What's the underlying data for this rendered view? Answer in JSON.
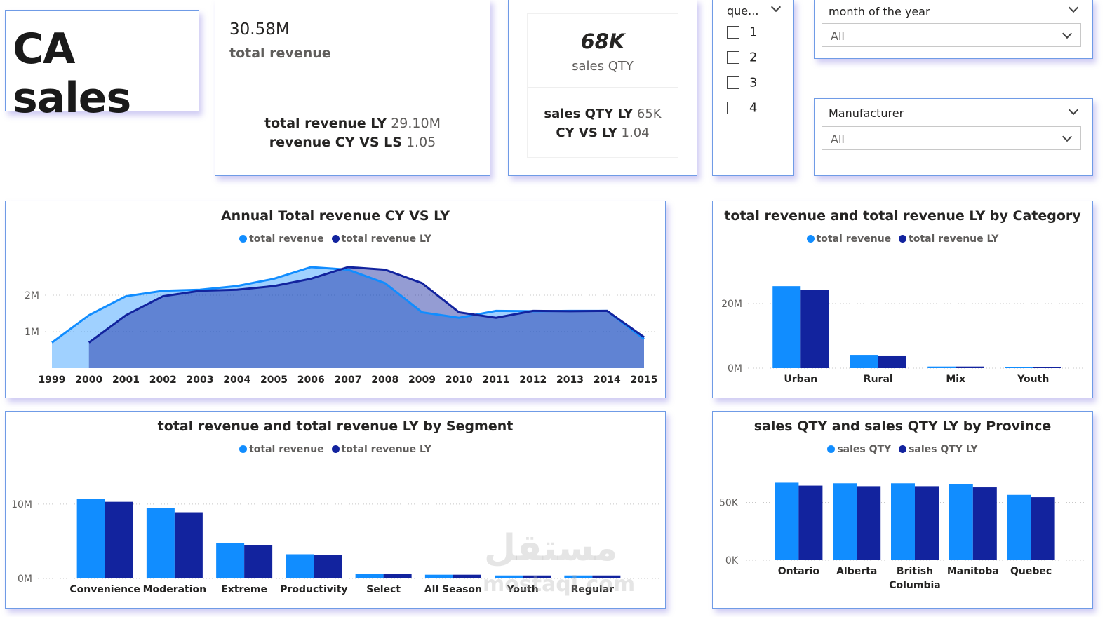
{
  "title": "CA sales",
  "kpi_revenue": {
    "value": "30.58M",
    "label": "total revenue",
    "ly_label": "total revenue LY",
    "ly_value": "29.10M",
    "cmp_label": "revenue CY VS LS",
    "cmp_value": "1.05"
  },
  "kpi_qty": {
    "value": "68K",
    "label": "sales QTY",
    "ly_label": "sales QTY LY",
    "ly_value": "65K",
    "cmp_label": "CY VS LY",
    "cmp_value": "1.04"
  },
  "quarter_slicer": {
    "title": "que...",
    "options": [
      "1",
      "2",
      "3",
      "4"
    ]
  },
  "month_slicer": {
    "title": "month of the year",
    "value": "All"
  },
  "manufacturer_slicer": {
    "title": "Manufacturer",
    "value": "All"
  },
  "colors": {
    "cy": "#118dff",
    "ly": "#12239e",
    "card_border": "#6f9be6"
  },
  "watermark": {
    "text_ar": "مستقل",
    "text_en": "mostaql.com"
  },
  "chart_data": [
    {
      "id": "annual",
      "type": "area",
      "title": "Annual Total revenue CY VS LY",
      "x": [
        "1999",
        "2000",
        "2001",
        "2002",
        "2003",
        "2004",
        "2005",
        "2006",
        "2007",
        "2008",
        "2009",
        "2010",
        "2011",
        "2012",
        "2013",
        "2014",
        "2015"
      ],
      "series": [
        {
          "name": "total revenue",
          "values": [
            0.7,
            1.45,
            1.97,
            2.12,
            2.15,
            2.25,
            2.45,
            2.77,
            2.7,
            2.33,
            1.53,
            1.38,
            1.57,
            1.56,
            1.57,
            1.57,
            0.8
          ]
        },
        {
          "name": "total revenue LY",
          "values": [
            null,
            0.7,
            1.45,
            1.97,
            2.12,
            2.15,
            2.25,
            2.45,
            2.77,
            2.7,
            2.33,
            1.53,
            1.38,
            1.57,
            1.56,
            1.57,
            0.85
          ]
        }
      ],
      "yticks": [
        {
          "v": 1,
          "label": "1M"
        },
        {
          "v": 2,
          "label": "2M"
        }
      ],
      "ylim": [
        0,
        3.0
      ],
      "grid": true,
      "legend": "top-center"
    },
    {
      "id": "category",
      "type": "bar",
      "title": "total revenue and total revenue LY by Category",
      "categories": [
        "Urban",
        "Rural",
        "Mix",
        "Youth"
      ],
      "series": [
        {
          "name": "total revenue",
          "values": [
            25.4,
            3.9,
            0.5,
            0.4
          ]
        },
        {
          "name": "total revenue LY",
          "values": [
            24.2,
            3.7,
            0.5,
            0.4
          ]
        }
      ],
      "yticks": [
        {
          "v": 0,
          "label": "0M"
        },
        {
          "v": 20,
          "label": "20M"
        }
      ],
      "ylim": [
        0,
        30
      ],
      "grid": true,
      "legend": "top-center"
    },
    {
      "id": "segment",
      "type": "bar",
      "title": "total revenue and total revenue LY by Segment",
      "categories": [
        "Convenience",
        "Moderation",
        "Extreme",
        "Productivity",
        "Select",
        "All Season",
        "Youth",
        "Regular"
      ],
      "series": [
        {
          "name": "total revenue",
          "values": [
            10.7,
            9.5,
            4.75,
            3.25,
            0.6,
            0.5,
            0.4,
            0.4
          ]
        },
        {
          "name": "total revenue LY",
          "values": [
            10.3,
            8.9,
            4.5,
            3.15,
            0.6,
            0.5,
            0.4,
            0.4
          ]
        }
      ],
      "yticks": [
        {
          "v": 0,
          "label": "0M"
        },
        {
          "v": 10,
          "label": "10M"
        }
      ],
      "ylim": [
        0,
        13
      ],
      "grid": true,
      "legend": "top-center"
    },
    {
      "id": "province",
      "type": "bar",
      "title": "sales QTY and sales QTY LY by Province",
      "categories": [
        "Ontario",
        "Alberta",
        "British Columbia",
        "Manitoba",
        "Quebec"
      ],
      "series": [
        {
          "name": "sales QTY",
          "values": [
            67,
            66.5,
            66.5,
            66,
            56.5
          ]
        },
        {
          "name": "sales QTY LY",
          "values": [
            64.5,
            64,
            64,
            63,
            54.5
          ]
        }
      ],
      "yticks": [
        {
          "v": 0,
          "label": "0K"
        },
        {
          "v": 50,
          "label": "50K"
        }
      ],
      "ylim": [
        0,
        80
      ],
      "grid": true,
      "legend": "top-center"
    }
  ]
}
